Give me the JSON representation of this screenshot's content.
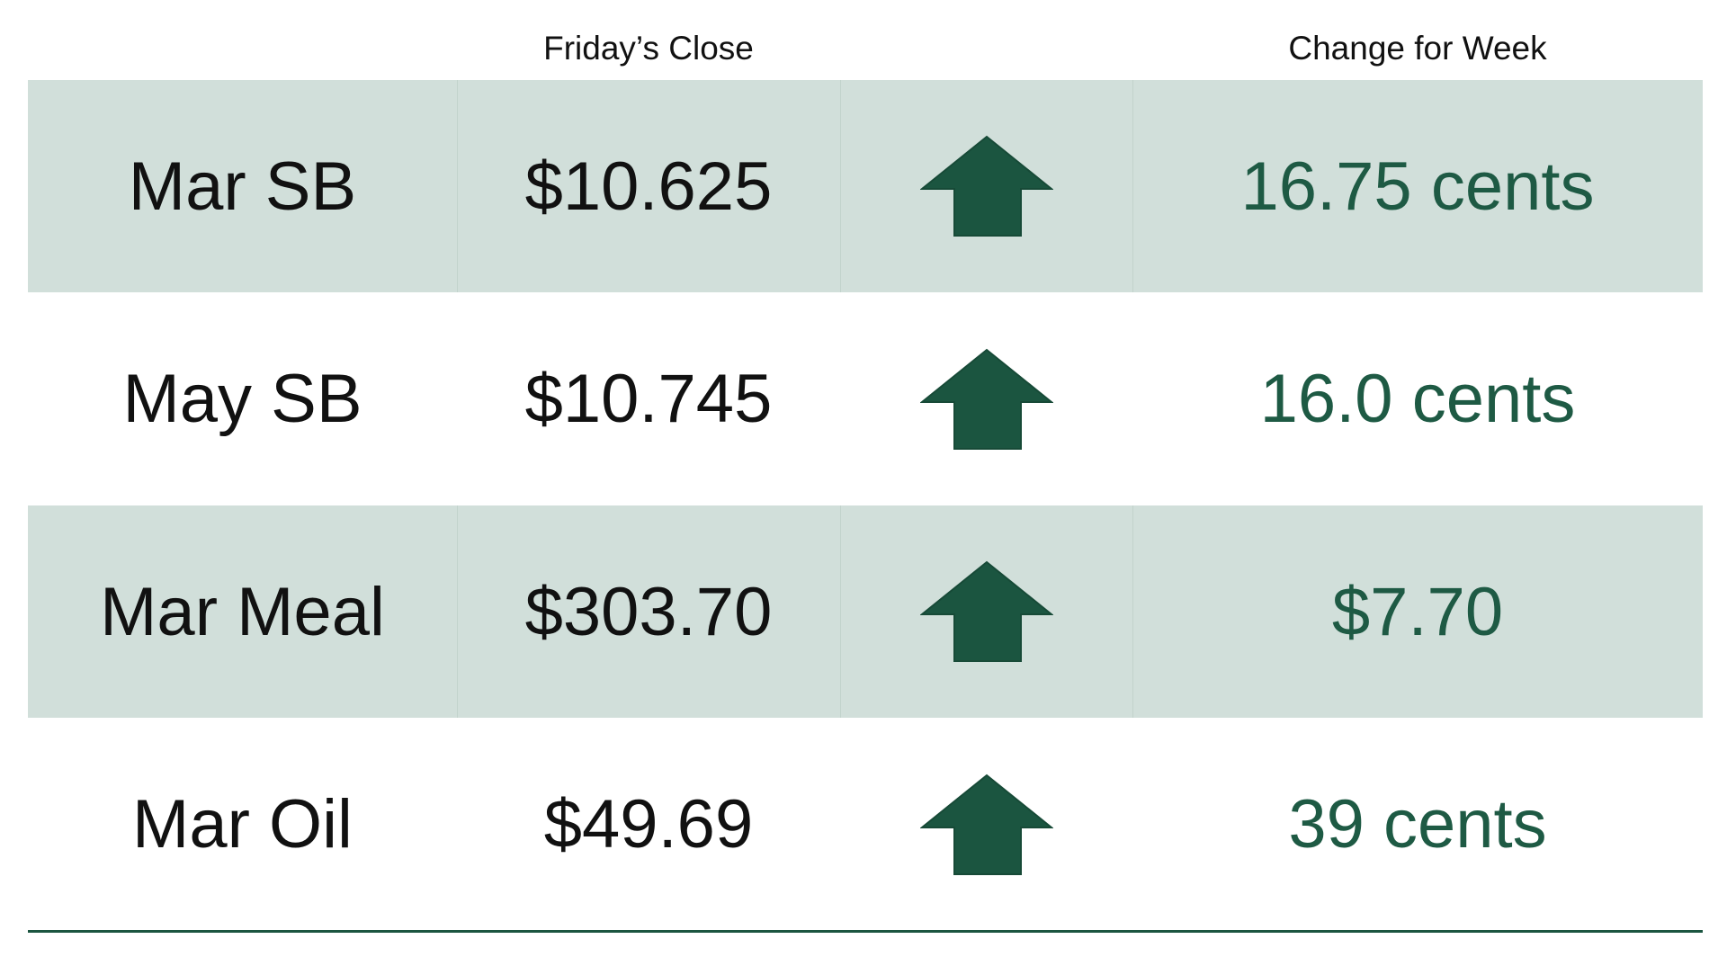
{
  "header": {
    "columns": [
      "Friday’s Close",
      "Change for Week"
    ]
  },
  "table": {
    "rows": [
      [
        "Mar SB",
        "$10.625",
        "16.75 cents"
      ],
      [
        "May SB",
        "$10.745",
        "16.0 cents"
      ],
      [
        "Mar Meal",
        "$303.70",
        "$7.70"
      ],
      [
        "Mar Oil",
        "$49.69",
        "39 cents"
      ]
    ]
  }
}
